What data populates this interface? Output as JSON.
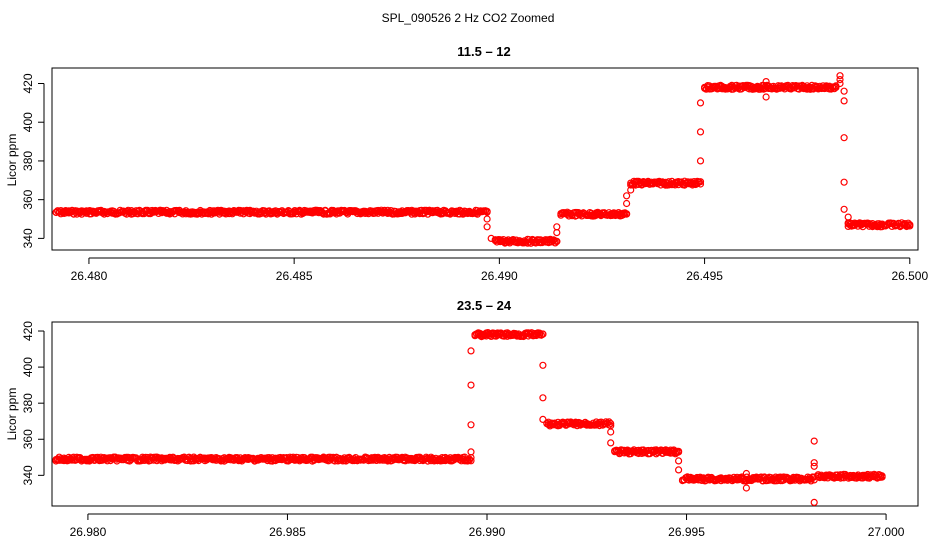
{
  "figure_title": "SPL_090526  2 Hz CO2 Zoomed",
  "chart_data": [
    {
      "type": "scatter",
      "title": "11.5 – 12",
      "xlabel": "",
      "ylabel": "Licor ppm",
      "xlim": [
        26.4791,
        26.5002
      ],
      "ylim": [
        334,
        428
      ],
      "xticks": [
        "26.480",
        "26.485",
        "26.490",
        "26.495",
        "26.500"
      ],
      "xtick_values": [
        26.48,
        26.485,
        26.49,
        26.495,
        26.5
      ],
      "yticks": [
        "340",
        "360",
        "380",
        "400",
        "420"
      ],
      "ytick_values": [
        340,
        360,
        380,
        400,
        420
      ],
      "marker_color": "#ff0000",
      "grid": false,
      "plateaus": [
        {
          "x_start": 26.4792,
          "x_end": 26.4897,
          "y": 353.5
        },
        {
          "x_start": 26.4899,
          "x_end": 26.4914,
          "y": 338.5
        },
        {
          "x_start": 26.4915,
          "x_end": 26.4931,
          "y": 352.5
        },
        {
          "x_start": 26.4932,
          "x_end": 26.4949,
          "y": 368.5
        },
        {
          "x_start": 26.495,
          "x_end": 26.4982,
          "y": 418
        },
        {
          "x_start": 26.4985,
          "x_end": 26.5,
          "y": 347
        }
      ],
      "points": [
        [
          26.4897,
          350
        ],
        [
          26.4897,
          346
        ],
        [
          26.4898,
          340
        ],
        [
          26.4914,
          343
        ],
        [
          26.4914,
          346
        ],
        [
          26.4931,
          358
        ],
        [
          26.4931,
          362
        ],
        [
          26.4932,
          365
        ],
        [
          26.4949,
          380
        ],
        [
          26.4949,
          395
        ],
        [
          26.4949,
          410
        ],
        [
          26.4965,
          421
        ],
        [
          26.4965,
          413
        ],
        [
          26.4983,
          424
        ],
        [
          26.4983,
          422
        ],
        [
          26.4983,
          420
        ],
        [
          26.4984,
          416
        ],
        [
          26.4984,
          411
        ],
        [
          26.4984,
          392
        ],
        [
          26.4984,
          369
        ],
        [
          26.4984,
          355
        ],
        [
          26.4985,
          351
        ],
        [
          26.4985,
          348
        ]
      ]
    },
    {
      "type": "scatter",
      "title": "23.5 – 24",
      "xlabel": "",
      "ylabel": "Licor ppm",
      "xlim": [
        26.9791,
        27.0008
      ],
      "ylim": [
        323,
        425
      ],
      "xticks": [
        "26.980",
        "26.985",
        "26.990",
        "26.995",
        "27.000"
      ],
      "xtick_values": [
        26.98,
        26.985,
        26.99,
        26.995,
        27.0
      ],
      "yticks": [
        "340",
        "360",
        "380",
        "400",
        "420"
      ],
      "ytick_values": [
        340,
        360,
        380,
        400,
        420
      ],
      "marker_color": "#ff0000",
      "grid": false,
      "plateaus": [
        {
          "x_start": 26.9792,
          "x_end": 26.9896,
          "y": 349
        },
        {
          "x_start": 26.9897,
          "x_end": 26.9914,
          "y": 418
        },
        {
          "x_start": 26.9915,
          "x_end": 26.9931,
          "y": 368.5
        },
        {
          "x_start": 26.9932,
          "x_end": 26.9948,
          "y": 353
        },
        {
          "x_start": 26.9949,
          "x_end": 26.9982,
          "y": 338
        },
        {
          "x_start": 26.9983,
          "x_end": 26.9999,
          "y": 339.5
        }
      ],
      "points": [
        [
          26.9896,
          353
        ],
        [
          26.9896,
          368
        ],
        [
          26.9896,
          390
        ],
        [
          26.9896,
          409
        ],
        [
          26.9914,
          401
        ],
        [
          26.9914,
          383
        ],
        [
          26.9914,
          371
        ],
        [
          26.9931,
          364
        ],
        [
          26.9931,
          358
        ],
        [
          26.9948,
          348
        ],
        [
          26.9948,
          343
        ],
        [
          26.9965,
          341
        ],
        [
          26.9965,
          333
        ],
        [
          26.9982,
          359
        ],
        [
          26.9982,
          347
        ],
        [
          26.9982,
          345
        ],
        [
          26.9982,
          325
        ]
      ]
    }
  ]
}
